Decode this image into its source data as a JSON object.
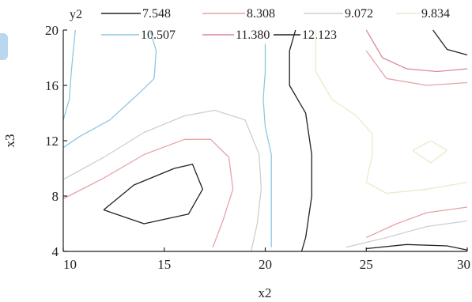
{
  "chart_data": {
    "type": "contour",
    "xlabel": "x2",
    "ylabel": "x3",
    "xlim": [
      10,
      30
    ],
    "ylim": [
      4,
      20
    ],
    "xticks": [
      10,
      15,
      20,
      25,
      30
    ],
    "yticks": [
      4,
      8,
      12,
      16,
      20
    ],
    "legend_title": "y2",
    "legend_placement": "top",
    "grid": false,
    "levels": [
      {
        "label": "7.548",
        "color": "#222222"
      },
      {
        "label": "8.308",
        "color": "#e6a4a8"
      },
      {
        "label": "9.072",
        "color": "#cfcfcf"
      },
      {
        "label": "9.834",
        "color": "#e8ecc8"
      },
      {
        "label": "10.507",
        "color": "#8ec7e3"
      },
      {
        "label": "11.380",
        "color": "#d98a9a"
      },
      {
        "label": "12.123",
        "color": "#222222"
      }
    ],
    "contours": [
      {
        "level": 0,
        "points": [
          [
            12.0,
            7.0
          ],
          [
            13.5,
            8.8
          ],
          [
            15.5,
            10.0
          ],
          [
            16.4,
            10.3
          ],
          [
            16.9,
            8.5
          ],
          [
            16.2,
            6.7
          ],
          [
            14.0,
            6.0
          ],
          [
            12.0,
            7.0
          ]
        ]
      },
      {
        "level": 1,
        "points": [
          [
            10.0,
            7.8
          ],
          [
            12.0,
            9.3
          ],
          [
            14.0,
            11.0
          ],
          [
            16.0,
            12.1
          ],
          [
            17.3,
            12.1
          ],
          [
            18.2,
            10.8
          ],
          [
            18.4,
            8.5
          ],
          [
            17.9,
            6.2
          ],
          [
            17.4,
            4.3
          ]
        ]
      },
      {
        "level": 1,
        "points": [
          [
            25.0,
            5.0
          ],
          [
            26.5,
            6.0
          ],
          [
            28.0,
            6.8
          ],
          [
            30.0,
            7.2
          ]
        ]
      },
      {
        "level": 1,
        "points": [
          [
            25.0,
            18.5
          ],
          [
            26.0,
            16.5
          ],
          [
            28.0,
            16.0
          ],
          [
            30.0,
            16.2
          ]
        ]
      },
      {
        "level": 2,
        "points": [
          [
            10.0,
            9.2
          ],
          [
            12.0,
            10.8
          ],
          [
            14.0,
            12.6
          ],
          [
            16.0,
            13.8
          ],
          [
            17.5,
            14.2
          ],
          [
            19.0,
            13.5
          ],
          [
            19.7,
            11.0
          ],
          [
            19.8,
            8.5
          ],
          [
            19.6,
            6.0
          ],
          [
            19.3,
            4.0
          ]
        ]
      },
      {
        "level": 2,
        "points": [
          [
            24.0,
            4.3
          ],
          [
            26.0,
            5.0
          ],
          [
            28.0,
            5.8
          ],
          [
            30.0,
            6.2
          ]
        ]
      },
      {
        "level": 3,
        "points": [
          [
            22.5,
            20.0
          ],
          [
            22.5,
            17.0
          ],
          [
            23.3,
            15.0
          ],
          [
            24.5,
            13.8
          ],
          [
            25.3,
            12.5
          ],
          [
            25.3,
            11.0
          ],
          [
            25.0,
            9.0
          ],
          [
            26.0,
            8.2
          ],
          [
            28.0,
            8.5
          ],
          [
            30.0,
            9.0
          ]
        ]
      },
      {
        "level": 3,
        "points": [
          [
            27.3,
            11.3
          ],
          [
            28.2,
            12.0
          ],
          [
            29.0,
            11.3
          ],
          [
            28.2,
            10.4
          ],
          [
            27.3,
            11.3
          ]
        ]
      },
      {
        "level": 4,
        "points": [
          [
            10.6,
            20.0
          ],
          [
            10.4,
            17.0
          ],
          [
            10.3,
            15.0
          ],
          [
            10.0,
            13.5
          ]
        ]
      },
      {
        "level": 4,
        "points": [
          [
            14.3,
            20.0
          ],
          [
            14.6,
            18.5
          ],
          [
            14.5,
            16.5
          ],
          [
            13.8,
            15.5
          ],
          [
            12.3,
            13.5
          ],
          [
            10.8,
            12.3
          ],
          [
            10.0,
            11.5
          ]
        ]
      },
      {
        "level": 4,
        "points": [
          [
            20.0,
            19.0
          ],
          [
            20.0,
            17.0
          ],
          [
            19.9,
            15.0
          ],
          [
            20.0,
            13.0
          ],
          [
            20.3,
            11.0
          ],
          [
            20.3,
            8.0
          ],
          [
            20.3,
            6.0
          ],
          [
            20.3,
            4.3
          ]
        ]
      },
      {
        "level": 5,
        "points": [
          [
            25.0,
            20.0
          ],
          [
            25.8,
            18.0
          ],
          [
            27.0,
            17.2
          ],
          [
            28.5,
            17.0
          ],
          [
            30.0,
            17.2
          ]
        ]
      },
      {
        "level": 6,
        "points": [
          [
            28.3,
            20.0
          ],
          [
            29.0,
            18.6
          ],
          [
            30.0,
            18.2
          ]
        ]
      },
      {
        "level": 6,
        "points": [
          [
            21.5,
            20.0
          ],
          [
            21.2,
            18.5
          ],
          [
            21.2,
            16.0
          ],
          [
            22.0,
            14.0
          ],
          [
            22.3,
            11.0
          ],
          [
            22.3,
            8.0
          ],
          [
            22.0,
            5.0
          ],
          [
            21.8,
            4.0
          ]
        ]
      },
      {
        "level": 6,
        "points": [
          [
            25.0,
            4.2
          ],
          [
            27.0,
            4.5
          ],
          [
            29.0,
            4.4
          ],
          [
            30.0,
            4.1
          ]
        ]
      }
    ]
  }
}
